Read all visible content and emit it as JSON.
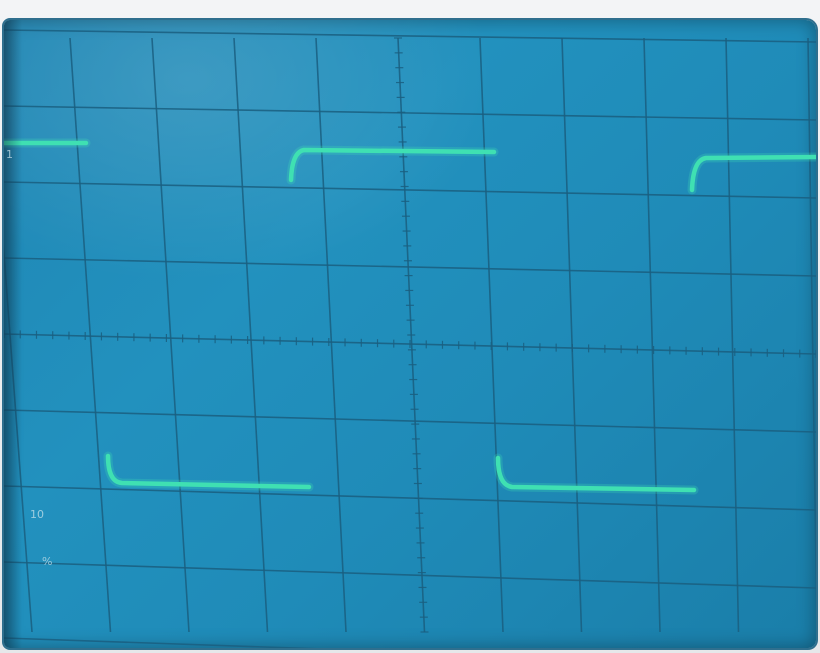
{
  "scope": {
    "screen_color": "#2190bb",
    "grid_color": "#1a5f80",
    "trace_color": "#3fe0b2",
    "divisions_x": 10,
    "divisions_y": 8
  },
  "edge_marks": {
    "top_left": "1",
    "bottom_left_a": "10",
    "bottom_left_b": "%"
  }
}
